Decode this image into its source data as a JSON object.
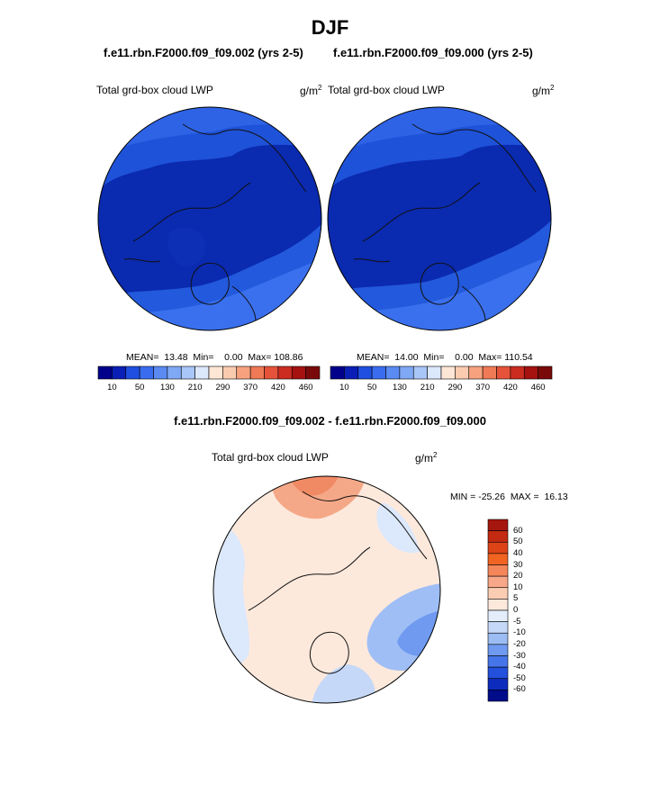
{
  "season": "DJF",
  "panels": [
    {
      "run_title": "f.e11.rbn.F2000.f09_f09.002 (yrs 2-5)",
      "field": "Total grd-box cloud LWP",
      "units_base": "g/m",
      "units_exp": "2",
      "stats_text": "MEAN=  13.48  Min=    0.00  Max= 108.86"
    },
    {
      "run_title": "f.e11.rbn.F2000.f09_f09.000 (yrs 2-5)",
      "field": "Total grd-box cloud LWP",
      "units_base": "g/m",
      "units_exp": "2",
      "stats_text": "MEAN=  14.00  Min=    0.00  Max= 110.54"
    }
  ],
  "main_colorbar": {
    "tick_labels": [
      "10",
      "50",
      "130",
      "210",
      "290",
      "370",
      "420",
      "460"
    ],
    "colors": [
      "#00008b",
      "#0a1fb5",
      "#1f4fe0",
      "#3a6cf0",
      "#5a8af2",
      "#7fa8f5",
      "#a9c6f8",
      "#dbe8fb",
      "#fde6d6",
      "#fbcbb0",
      "#f6a27e",
      "#f07a56",
      "#e6533a",
      "#cc2c20",
      "#a5110f",
      "#7a0a0a"
    ]
  },
  "diff": {
    "title": "f.e11.rbn.F2000.f09_f09.002 - f.e11.rbn.F2000.f09_f09.000",
    "field": "Total grd-box cloud LWP",
    "units_base": "g/m",
    "units_exp": "2",
    "minmax_text": "MIN = -25.26  MAX =  16.13",
    "colorbar": {
      "tick_labels": [
        "60",
        "50",
        "40",
        "30",
        "20",
        "10",
        "5",
        "0",
        "-5",
        "-10",
        "-20",
        "-30",
        "-40",
        "-50",
        "-60"
      ],
      "colors": [
        "#a5160e",
        "#c42a12",
        "#dc4418",
        "#f26422",
        "#f5865a",
        "#f8a888",
        "#fbcdb2",
        "#fde9dc",
        "#e4eefb",
        "#c5d8f8",
        "#9cbcf4",
        "#6f9af0",
        "#4675ea",
        "#2350dc",
        "#0d2bbd",
        "#000c8a"
      ]
    }
  }
}
